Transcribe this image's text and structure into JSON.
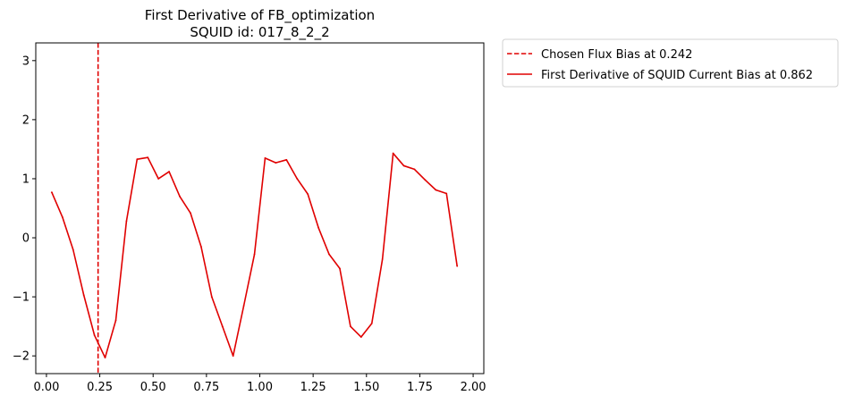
{
  "chart_data": {
    "type": "line",
    "title": "First Derivative of FB_optimization",
    "subtitle": "SQUID id: 017_8_2_2",
    "xlabel": "",
    "ylabel": "",
    "xlim": [
      -0.05,
      2.05
    ],
    "ylim": [
      -2.3,
      3.3
    ],
    "xticks": [
      "0.00",
      "0.25",
      "0.50",
      "0.75",
      "1.00",
      "1.25",
      "1.50",
      "1.75",
      "2.00"
    ],
    "yticks": [
      "−2",
      "−1",
      "0",
      "1",
      "2",
      "3"
    ],
    "grid": false,
    "legend_position": "outside-top-right",
    "vline": {
      "name": "Chosen Flux Bias at 0.242",
      "x": 0.242,
      "color": "#e00000",
      "style": "dashed"
    },
    "series": [
      {
        "name": "First Derivative of SQUID Current Bias at 0.862",
        "color": "#e00000",
        "x": [
          0.025,
          0.075,
          0.125,
          0.175,
          0.225,
          0.275,
          0.325,
          0.375,
          0.425,
          0.475,
          0.525,
          0.575,
          0.625,
          0.675,
          0.725,
          0.775,
          0.825,
          0.875,
          0.925,
          0.975,
          1.025,
          1.075,
          1.125,
          1.175,
          1.225,
          1.275,
          1.325,
          1.375,
          1.425,
          1.475,
          1.525,
          1.575,
          1.625,
          1.675,
          1.725,
          1.775,
          1.825,
          1.875,
          1.925
        ],
        "values": [
          0.77,
          0.35,
          -0.2,
          -0.97,
          -1.65,
          -2.03,
          -1.4,
          0.28,
          1.33,
          1.36,
          1.0,
          1.12,
          0.7,
          0.42,
          -0.15,
          -1.0,
          -1.5,
          -2.0,
          -1.15,
          -0.28,
          1.35,
          1.27,
          1.32,
          1.0,
          0.74,
          0.17,
          -0.28,
          -0.52,
          -1.5,
          -1.68,
          -1.45,
          -0.36,
          1.43,
          1.22,
          1.16,
          0.98,
          0.81,
          0.75,
          -0.48
        ]
      }
    ]
  }
}
